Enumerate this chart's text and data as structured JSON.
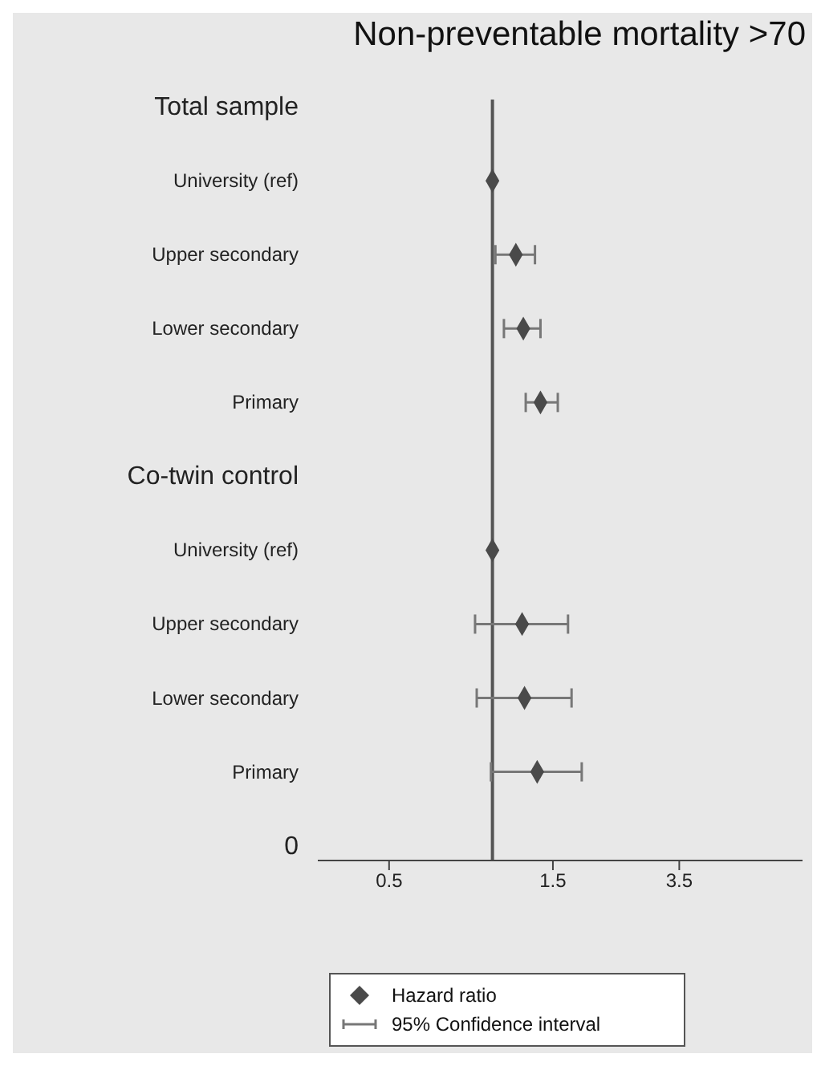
{
  "chart_data": {
    "type": "scatter",
    "orientation": "horizontal",
    "title": "Non-preventable mortality >70",
    "categories": [
      "Total sample",
      "University (ref)",
      "Upper secondary",
      "Lower secondary",
      "Primary",
      "Co-twin control",
      "University (ref)",
      "Upper secondary",
      "Lower secondary",
      "Primary",
      "0"
    ],
    "series": [
      {
        "name": "Hazard ratio",
        "color": "#4a4a4a",
        "values": [
          null,
          1.0,
          1.17,
          1.23,
          1.38,
          null,
          1.0,
          1.22,
          1.24,
          1.35,
          null
        ],
        "errors": [
          null,
          null,
          [
            1.02,
            1.33
          ],
          [
            1.08,
            1.38
          ],
          [
            1.25,
            1.55
          ],
          null,
          null,
          [
            0.89,
            1.66
          ],
          [
            0.9,
            1.7
          ],
          [
            0.99,
            1.82
          ],
          null
        ]
      }
    ],
    "annotations": [
      "95% Confidence interval"
    ],
    "log": "x",
    "xlim": [
      0.31,
      8
    ],
    "xticks": [
      0.5,
      1.5,
      3.5
    ],
    "ref_lines": [
      {
        "axis": "x",
        "value": 1,
        "color": "#555555"
      }
    ],
    "marker": "diamond",
    "legend": "bottom",
    "grid": false
  }
}
